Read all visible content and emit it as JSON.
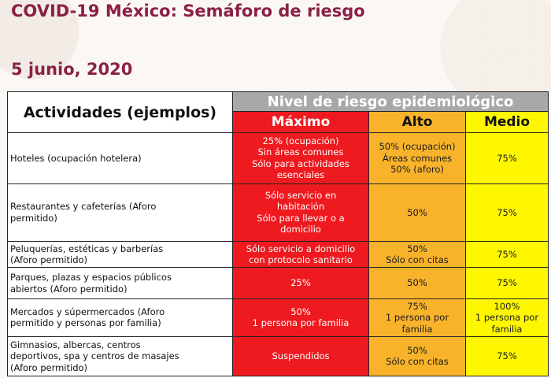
{
  "title": "COVID-19 México: Semáforo de riesgo",
  "date": "5 junio, 2020",
  "table": {
    "activities_header": "Actividades (ejemplos)",
    "risk_header": "Nivel de riesgo epidemiológico",
    "levels": [
      "Máximo",
      "Alto",
      "Medio"
    ],
    "rows": [
      {
        "activity": [
          "Hoteles (ocupación hotelera)"
        ],
        "maximo": [
          "25% (ocupación)",
          "Sin áreas comunes",
          "Sólo para actividades",
          "esenciales"
        ],
        "alto": [
          "50% (ocupación)",
          "Áreas comunes",
          "50% (aforo)"
        ],
        "medio": [
          "75%"
        ]
      },
      {
        "activity": [
          "Restaurantes y cafeterías (Aforo",
          "permitido)"
        ],
        "maximo": [
          "Sólo servicio en",
          "habitación",
          "Sólo para llevar o a",
          "domicilio"
        ],
        "alto": [
          "50%"
        ],
        "medio": [
          "75%"
        ]
      },
      {
        "activity": [
          "Peluquerías, estéticas y barberías",
          "(Aforo permitido)"
        ],
        "maximo": [
          "Sólo servicio a domicilio",
          "con protocolo sanitario"
        ],
        "alto": [
          "50%",
          "Sólo con citas"
        ],
        "medio": [
          "75%"
        ]
      },
      {
        "activity": [
          "Parques, plazas y espacios públicos",
          "abiertos (Aforo permitido)"
        ],
        "maximo": [
          "25%"
        ],
        "alto": [
          "50%"
        ],
        "medio": [
          "75%"
        ]
      },
      {
        "activity": [
          "Mercados y súpermercados (Aforo",
          "permitido y personas por familia)"
        ],
        "maximo": [
          "50%",
          "1 persona por familia"
        ],
        "alto": [
          "75%",
          "1 persona por",
          "familia"
        ],
        "medio": [
          "100%",
          "1 persona por",
          "familia"
        ]
      },
      {
        "activity": [
          "Gimnasios, albercas, centros",
          "deportivos, spa y centros de masajes",
          "(Aforo permitido)"
        ],
        "maximo": [
          "Suspendidos"
        ],
        "alto": [
          "50%",
          "Sólo con citas"
        ],
        "medio": [
          "75%"
        ]
      }
    ]
  }
}
